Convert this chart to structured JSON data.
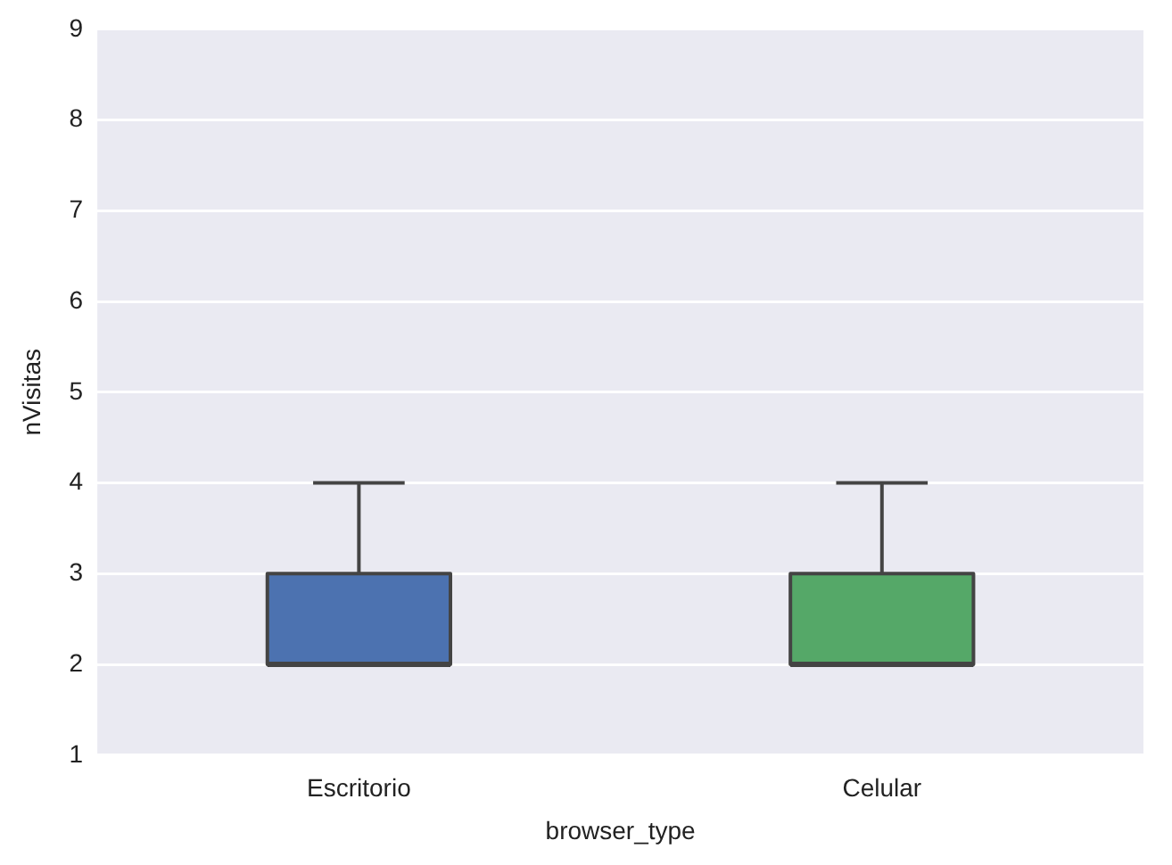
{
  "chart_data": {
    "type": "box",
    "xlabel": "browser_type",
    "ylabel": "nVisitas",
    "categories": [
      "Escritorio",
      "Celular"
    ],
    "colors": [
      "#4c72b0",
      "#55a868"
    ],
    "boxes": [
      {
        "low": 2,
        "q1": 2,
        "median": 2,
        "q3": 3,
        "high": 4
      },
      {
        "low": 2,
        "q1": 2,
        "median": 2,
        "q3": 3,
        "high": 4
      }
    ],
    "ylim": [
      1,
      9
    ],
    "yticks": [
      1,
      2,
      3,
      4,
      5,
      6,
      7,
      8,
      9
    ],
    "grid": "y",
    "legend": false
  }
}
